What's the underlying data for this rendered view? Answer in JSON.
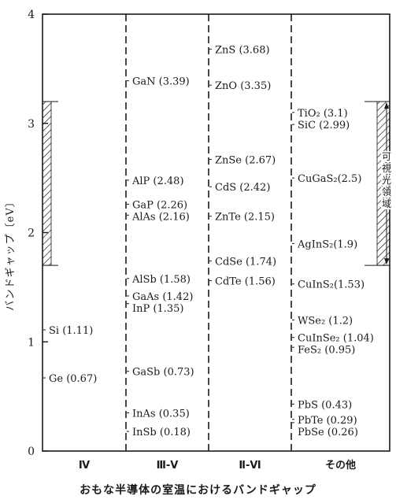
{
  "chart_data": {
    "type": "scatter",
    "title": "おもな半導体の室温におけるバンドギャップ",
    "ylabel": "バンドギャップ〔eV〕",
    "ylim": [
      0,
      4
    ],
    "yticks": [
      0,
      1,
      2,
      3,
      4
    ],
    "categories": [
      "Ⅳ",
      "Ⅲ-Ⅴ",
      "Ⅱ-Ⅵ",
      "その他"
    ],
    "visible_range": {
      "label": "可視光領域",
      "min": 1.7,
      "max": 3.2
    },
    "series": [
      {
        "category": "Ⅳ",
        "points": [
          {
            "label": "Si (1.11)",
            "value": 1.11
          },
          {
            "label": "Ge (0.67)",
            "value": 0.67
          }
        ]
      },
      {
        "category": "Ⅲ-Ⅴ",
        "points": [
          {
            "label": "GaN (3.39)",
            "value": 3.39
          },
          {
            "label": "AlP (2.48)",
            "value": 2.48
          },
          {
            "label": "GaP (2.26)",
            "value": 2.26
          },
          {
            "label": "AlAs (2.16)",
            "value": 2.16
          },
          {
            "label": "AlSb (1.58)",
            "value": 1.58
          },
          {
            "label": "GaAs (1.42)",
            "value": 1.42
          },
          {
            "label": "InP (1.35)",
            "value": 1.35
          },
          {
            "label": "GaSb (0.73)",
            "value": 0.73
          },
          {
            "label": "InAs (0.35)",
            "value": 0.35
          },
          {
            "label": "InSb (0.18)",
            "value": 0.18
          }
        ]
      },
      {
        "category": "Ⅱ-Ⅵ",
        "points": [
          {
            "label": "ZnS (3.68)",
            "value": 3.68
          },
          {
            "label": "ZnO (3.35)",
            "value": 3.35
          },
          {
            "label": "ZnSe (2.67)",
            "value": 2.67
          },
          {
            "label": "CdS (2.42)",
            "value": 2.42
          },
          {
            "label": "ZnTe (2.15)",
            "value": 2.15
          },
          {
            "label": "CdSe (1.74)",
            "value": 1.74
          },
          {
            "label": "CdTe (1.56)",
            "value": 1.56
          }
        ]
      },
      {
        "category": "その他",
        "points": [
          {
            "label": "TiO₂ (3.1)",
            "value": 3.1
          },
          {
            "label": "SiC (2.99)",
            "value": 2.99
          },
          {
            "label": "CuGaS₂(2.5)",
            "value": 2.5
          },
          {
            "label": "AgInS₂(1.9)",
            "value": 1.9
          },
          {
            "label": "CuInS₂(1.53)",
            "value": 1.53
          },
          {
            "label": "WSe₂ (1.2)",
            "value": 1.2
          },
          {
            "label": "CuInSe₂ (1.04)",
            "value": 1.04
          },
          {
            "label": "FeS₂ (0.95)",
            "value": 0.95
          },
          {
            "label": "PbS (0.43)",
            "value": 0.43
          },
          {
            "label": "PbTe (0.29)",
            "value": 0.29
          },
          {
            "label": "PbSe (0.26)",
            "value": 0.26
          }
        ]
      }
    ],
    "grid": false,
    "colors": {
      "ink": "#1a1a1a",
      "background": "#ffffff"
    }
  }
}
